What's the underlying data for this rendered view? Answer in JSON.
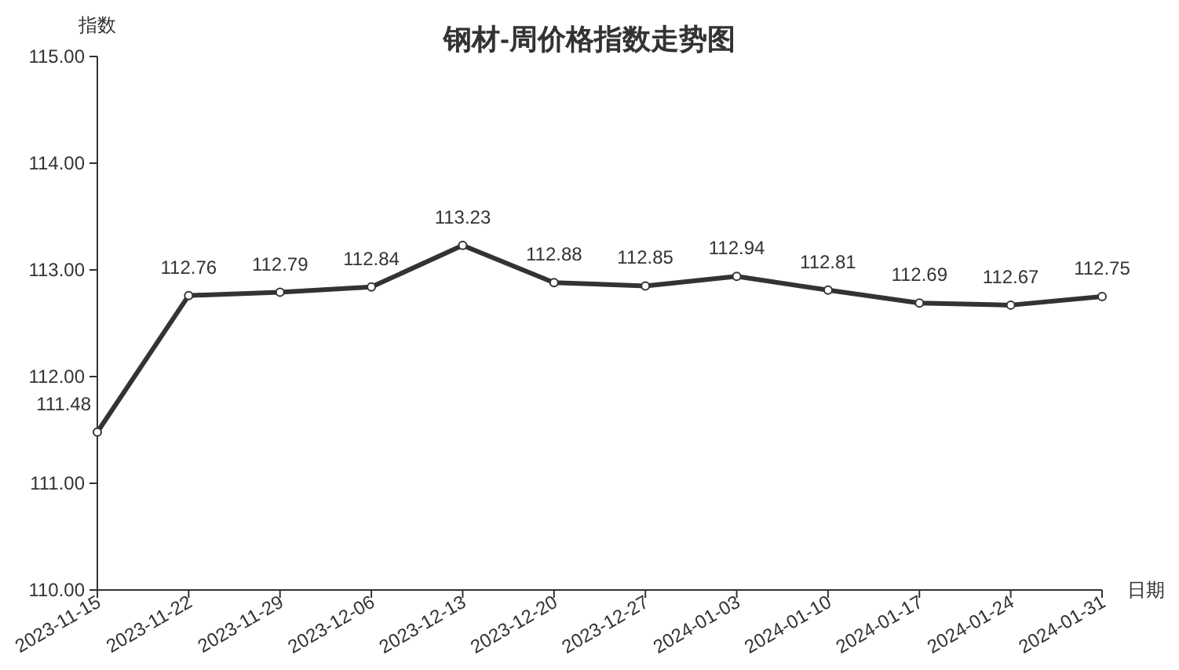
{
  "chart_data": {
    "type": "line",
    "title": "钢材-周价格指数走势图",
    "ylabel": "指数",
    "xlabel": "日期",
    "categories": [
      "2023-11-15",
      "2023-11-22",
      "2023-11-29",
      "2023-12-06",
      "2023-12-13",
      "2023-12-20",
      "2023-12-27",
      "2024-01-03",
      "2024-01-10",
      "2024-01-17",
      "2024-01-24",
      "2024-01-31"
    ],
    "series": [
      {
        "color": "#333333",
        "values": [
          111.48,
          112.76,
          112.79,
          112.84,
          113.23,
          112.88,
          112.85,
          112.94,
          112.81,
          112.69,
          112.67,
          112.75
        ]
      }
    ],
    "ylim": [
      110,
      115
    ],
    "yticks": [
      {
        "value": 110,
        "label": "110.00"
      },
      {
        "value": 111,
        "label": "111.00"
      },
      {
        "value": 112,
        "label": "112.00"
      },
      {
        "value": 113,
        "label": "113.00"
      },
      {
        "value": 114,
        "label": "114.00"
      },
      {
        "value": 115,
        "label": "115.00"
      }
    ],
    "data_labels": true,
    "grid": false,
    "marker": "circle",
    "line_style": "solid"
  }
}
